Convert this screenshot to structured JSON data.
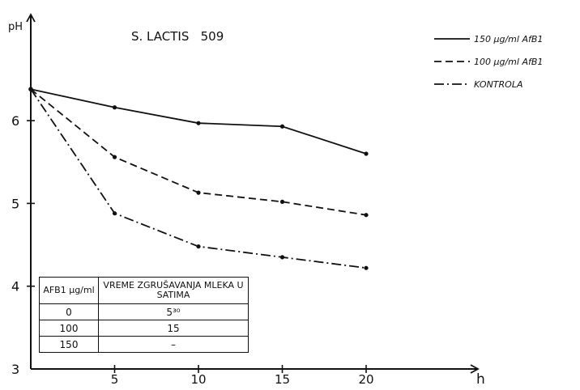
{
  "chart_data": {
    "type": "line",
    "title": "S. LACTIS   509",
    "xlabel": "h",
    "ylabel": "pH",
    "xlim": [
      0,
      23
    ],
    "ylim": [
      3,
      7
    ],
    "x_ticks": [
      5,
      10,
      15,
      20
    ],
    "y_ticks": [
      3,
      4,
      5,
      6
    ],
    "grid": false,
    "legend_position": "top-right",
    "series": [
      {
        "name": "150 µg/ml AfB1",
        "dash": "solid",
        "x": [
          0,
          5,
          10,
          15,
          20
        ],
        "y": [
          6.38,
          6.16,
          5.97,
          5.93,
          5.6
        ]
      },
      {
        "name": "100 µg/ml AfB1",
        "dash": "dashed",
        "x": [
          0,
          5,
          10,
          15,
          20
        ],
        "y": [
          6.38,
          5.56,
          5.13,
          5.02,
          4.86
        ]
      },
      {
        "name": "KONTROLA",
        "dash": "dashdot",
        "x": [
          0,
          5,
          10,
          15,
          20
        ],
        "y": [
          6.38,
          4.88,
          4.48,
          4.35,
          4.22
        ]
      }
    ]
  },
  "table": {
    "header": [
      "AFB1 µg/ml",
      "VREME ZGRUŠAVANJA MLEKA U SATIMA"
    ],
    "rows": [
      [
        "0",
        "5³⁰"
      ],
      [
        "100",
        "15"
      ],
      [
        "150",
        "–"
      ]
    ]
  }
}
